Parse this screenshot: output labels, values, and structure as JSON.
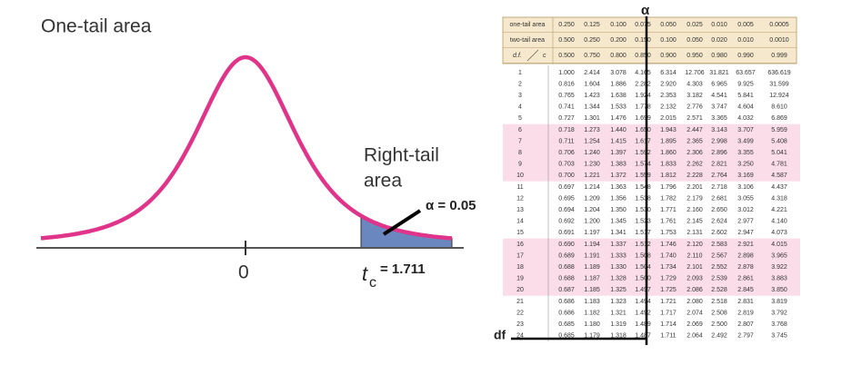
{
  "diagram": {
    "title": "One-tail area",
    "right_tail_label": [
      "Right-tail",
      "area"
    ],
    "alpha_label": "α = 0.05",
    "zero_label": "0",
    "tc_symbol": "t",
    "tc_subscript": "c",
    "tc_value": "= 1.711"
  },
  "table": {
    "header_rows": [
      {
        "label": "one-tail area",
        "values": [
          "0.250",
          "0.125",
          "0.100",
          "0.075",
          "0.050",
          "0.025",
          "0.010",
          "0.005",
          "0.0005"
        ]
      },
      {
        "label": "two-tail area",
        "values": [
          "0.500",
          "0.250",
          "0.200",
          "0.150",
          "0.100",
          "0.050",
          "0.020",
          "0.010",
          "0.0010"
        ]
      },
      {
        "label": "d.f.",
        "label2": "c",
        "values": [
          "0.500",
          "0.750",
          "0.800",
          "0.850",
          "0.900",
          "0.950",
          "0.980",
          "0.990",
          "0.999"
        ]
      }
    ],
    "rows": [
      [
        "1",
        "1.000",
        "2.414",
        "3.078",
        "4.165",
        "6.314",
        "12.706",
        "31.821",
        "63.657",
        "636.619"
      ],
      [
        "2",
        "0.816",
        "1.604",
        "1.886",
        "2.282",
        "2.920",
        "4.303",
        "6.965",
        "9.925",
        "31.599"
      ],
      [
        "3",
        "0.765",
        "1.423",
        "1.638",
        "1.924",
        "2.353",
        "3.182",
        "4.541",
        "5.841",
        "12.924"
      ],
      [
        "4",
        "0.741",
        "1.344",
        "1.533",
        "1.778",
        "2.132",
        "2.776",
        "3.747",
        "4.604",
        "8.610"
      ],
      [
        "5",
        "0.727",
        "1.301",
        "1.476",
        "1.699",
        "2.015",
        "2.571",
        "3.365",
        "4.032",
        "6.869"
      ],
      [
        "6",
        "0.718",
        "1.273",
        "1.440",
        "1.650",
        "1.943",
        "2.447",
        "3.143",
        "3.707",
        "5.959"
      ],
      [
        "7",
        "0.711",
        "1.254",
        "1.415",
        "1.617",
        "1.895",
        "2.365",
        "2.998",
        "3.499",
        "5.408"
      ],
      [
        "8",
        "0.706",
        "1.240",
        "1.397",
        "1.592",
        "1.860",
        "2.306",
        "2.896",
        "3.355",
        "5.041"
      ],
      [
        "9",
        "0.703",
        "1.230",
        "1.383",
        "1.574",
        "1.833",
        "2.262",
        "2.821",
        "3.250",
        "4.781"
      ],
      [
        "10",
        "0.700",
        "1.221",
        "1.372",
        "1.559",
        "1.812",
        "2.228",
        "2.764",
        "3.169",
        "4.587"
      ],
      [
        "11",
        "0.697",
        "1.214",
        "1.363",
        "1.548",
        "1.796",
        "2.201",
        "2.718",
        "3.106",
        "4.437"
      ],
      [
        "12",
        "0.695",
        "1.209",
        "1.356",
        "1.538",
        "1.782",
        "2.179",
        "2.681",
        "3.055",
        "4.318"
      ],
      [
        "13",
        "0.694",
        "1.204",
        "1.350",
        "1.530",
        "1.771",
        "2.160",
        "2.650",
        "3.012",
        "4.221"
      ],
      [
        "14",
        "0.692",
        "1.200",
        "1.345",
        "1.523",
        "1.761",
        "2.145",
        "2.624",
        "2.977",
        "4.140"
      ],
      [
        "15",
        "0.691",
        "1.197",
        "1.341",
        "1.517",
        "1.753",
        "2.131",
        "2.602",
        "2.947",
        "4.073"
      ],
      [
        "16",
        "0.690",
        "1.194",
        "1.337",
        "1.512",
        "1.746",
        "2.120",
        "2.583",
        "2.921",
        "4.015"
      ],
      [
        "17",
        "0.689",
        "1.191",
        "1.333",
        "1.508",
        "1.740",
        "2.110",
        "2.567",
        "2.898",
        "3.965"
      ],
      [
        "18",
        "0.688",
        "1.189",
        "1.330",
        "1.504",
        "1.734",
        "2.101",
        "2.552",
        "2.878",
        "3.922"
      ],
      [
        "19",
        "0.688",
        "1.187",
        "1.328",
        "1.500",
        "1.729",
        "2.093",
        "2.539",
        "2.861",
        "3.883"
      ],
      [
        "20",
        "0.687",
        "1.185",
        "1.325",
        "1.497",
        "1.725",
        "2.086",
        "2.528",
        "2.845",
        "3.850"
      ],
      [
        "21",
        "0.686",
        "1.183",
        "1.323",
        "1.494",
        "1.721",
        "2.080",
        "2.518",
        "2.831",
        "3.819"
      ],
      [
        "22",
        "0.686",
        "1.182",
        "1.321",
        "1.492",
        "1.717",
        "2.074",
        "2.508",
        "2.819",
        "3.792"
      ],
      [
        "23",
        "0.685",
        "1.180",
        "1.319",
        "1.489",
        "1.714",
        "2.069",
        "2.500",
        "2.807",
        "3.768"
      ],
      [
        "24",
        "0.685",
        "1.179",
        "1.318",
        "1.487",
        "1.711",
        "2.064",
        "2.492",
        "2.797",
        "3.745"
      ]
    ],
    "alpha_marker": "α",
    "df_marker": "df"
  }
}
